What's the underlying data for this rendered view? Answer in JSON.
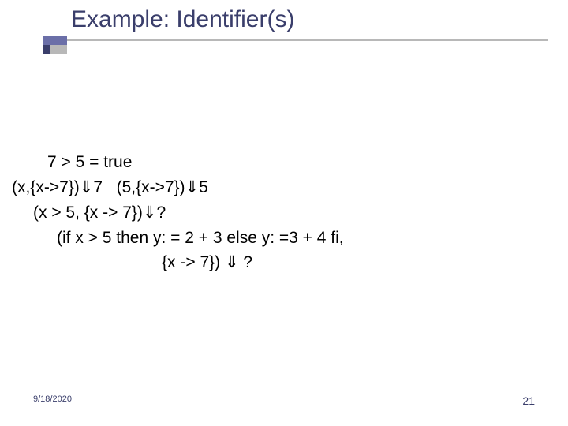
{
  "title": "Example: Identifier(s)",
  "lines": {
    "l1": "7 > 5 = true",
    "l2a": "(x,{x->7})⇓7",
    "l2b": "(5,{x->7})⇓5",
    "l3": "(x > 5, {x -> 7})⇓?",
    "l4": "(if x > 5 then y: = 2 + 3 else y: =3 + 4 fi,",
    "l5": "{x -> 7}) ⇓ ?"
  },
  "footer": {
    "date": "9/18/2020",
    "page": "21"
  },
  "colors": {
    "title": "#3a3e6b",
    "accent1": "#6b6fa8",
    "accent2": "#3a3e6b",
    "accent3": "#b8b8b8",
    "text": "#000000",
    "background": "#ffffff"
  }
}
